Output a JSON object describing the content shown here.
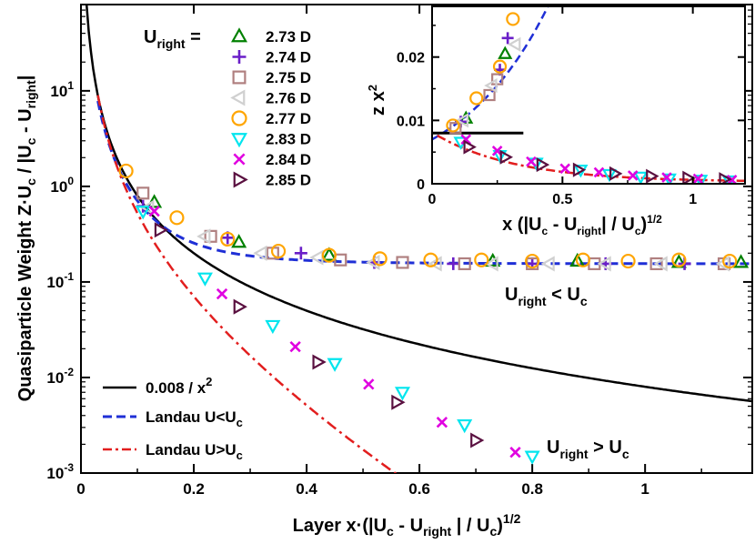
{
  "chart_data": [
    {
      "id": "main",
      "type": "scatter",
      "title": "",
      "xlabel": "Layer x·(|Uc - Uright | / Uc)^1/2",
      "ylabel": "Quasiparticle Weight Z·Uc / |Uc - Uright|",
      "xlim": [
        0,
        1.19
      ],
      "ylim": [
        0.001,
        80
      ],
      "yscale": "log",
      "xticks": [
        0,
        0.2,
        0.4,
        0.6,
        0.8,
        1
      ],
      "xtick_labels": [
        "0",
        "0.2",
        "0.4",
        "0.6",
        "0.8",
        "1"
      ],
      "yticks": [
        0.001,
        0.01,
        0.1,
        1,
        10
      ],
      "ytick_labels": [
        {
          "base": "10",
          "exp": "-3"
        },
        {
          "base": "10",
          "exp": "-2"
        },
        {
          "base": "10",
          "exp": "-1"
        },
        {
          "base": "10",
          "exp": "0"
        },
        {
          "base": "10",
          "exp": "1"
        }
      ],
      "legend_title": "Uright =",
      "series": [
        {
          "name": "2.73 D",
          "marker": "triangle-up",
          "color": "#008000",
          "points": [
            [
              0.13,
              0.68
            ],
            [
              0.28,
              0.26
            ],
            [
              0.44,
              0.19
            ],
            [
              0.73,
              0.165
            ],
            [
              0.88,
              0.165
            ],
            [
              1.06,
              0.16
            ],
            [
              1.17,
              0.16
            ]
          ]
        },
        {
          "name": "2.74 D",
          "marker": "plus",
          "color": "#6a1fc8",
          "points": [
            [
              0.11,
              0.62
            ],
            [
              0.26,
              0.29
            ],
            [
              0.39,
              0.2
            ],
            [
              0.52,
              0.16
            ],
            [
              0.66,
              0.155
            ],
            [
              0.8,
              0.155
            ],
            [
              0.93,
              0.155
            ],
            [
              1.07,
              0.155
            ]
          ]
        },
        {
          "name": "2.75 D",
          "marker": "square",
          "color": "#b08080",
          "points": [
            [
              0.11,
              0.85
            ],
            [
              0.23,
              0.3
            ],
            [
              0.34,
              0.2
            ],
            [
              0.46,
              0.17
            ],
            [
              0.57,
              0.16
            ],
            [
              0.68,
              0.155
            ],
            [
              0.8,
              0.155
            ],
            [
              0.91,
              0.155
            ],
            [
              1.02,
              0.155
            ],
            [
              1.14,
              0.155
            ]
          ]
        },
        {
          "name": "2.76 D",
          "marker": "triangle-left",
          "color": "#d0d0d0",
          "points": [
            [
              0.12,
              0.6
            ],
            [
              0.22,
              0.3
            ],
            [
              0.32,
              0.2
            ],
            [
              0.42,
              0.18
            ],
            [
              0.52,
              0.16
            ],
            [
              0.63,
              0.155
            ],
            [
              0.73,
              0.155
            ],
            [
              0.83,
              0.155
            ],
            [
              0.93,
              0.155
            ],
            [
              1.03,
              0.155
            ],
            [
              1.14,
              0.155
            ]
          ]
        },
        {
          "name": "2.77 D",
          "marker": "circle",
          "color": "#ffa500",
          "points": [
            [
              0.08,
              1.45
            ],
            [
              0.17,
              0.47
            ],
            [
              0.26,
              0.28
            ],
            [
              0.35,
              0.21
            ],
            [
              0.44,
              0.19
            ],
            [
              0.53,
              0.175
            ],
            [
              0.62,
              0.17
            ],
            [
              0.71,
              0.17
            ],
            [
              0.8,
              0.165
            ],
            [
              0.89,
              0.17
            ],
            [
              0.97,
              0.165
            ],
            [
              1.06,
              0.17
            ],
            [
              1.15,
              0.165
            ]
          ]
        },
        {
          "name": "2.83 D",
          "marker": "triangle-down",
          "color": "#00e5ee",
          "points": [
            [
              0.11,
              0.55
            ],
            [
              0.22,
              0.11
            ],
            [
              0.34,
              0.035
            ],
            [
              0.45,
              0.014
            ],
            [
              0.57,
              0.007
            ],
            [
              0.68,
              0.0032
            ],
            [
              0.8,
              0.0015
            ]
          ]
        },
        {
          "name": "2.84 D",
          "marker": "x",
          "color": "#e000e0",
          "points": [
            [
              0.13,
              0.55
            ],
            [
              0.25,
              0.075
            ],
            [
              0.38,
              0.021
            ],
            [
              0.51,
              0.0085
            ],
            [
              0.64,
              0.0034
            ],
            [
              0.77,
              0.00165
            ]
          ]
        },
        {
          "name": "2.85 D",
          "marker": "triangle-right",
          "color": "#5a1040",
          "points": [
            [
              0.14,
              0.35
            ],
            [
              0.28,
              0.055
            ],
            [
              0.42,
              0.0145
            ],
            [
              0.56,
              0.0055
            ],
            [
              0.7,
              0.0022
            ]
          ]
        }
      ],
      "lines": [
        {
          "name": "0.008 / x^2",
          "style": "solid",
          "color": "#000000"
        },
        {
          "name": "Landau U<Uc",
          "style": "dashed",
          "color": "#1f2fd6"
        },
        {
          "name": "Landau U>Uc",
          "style": "dashdot",
          "color": "#e21e1e"
        }
      ],
      "annotations": [
        {
          "text": "Uright < Uc",
          "x": 0.79,
          "y": 0.075
        },
        {
          "text": "Uright > Uc",
          "x": 0.84,
          "y": 0.0012
        }
      ]
    },
    {
      "id": "inset",
      "type": "scatter",
      "xlabel": "x (|Uc - Uright| / Uc)^1/2",
      "ylabel": "z x^2",
      "xlim": [
        0,
        1.2
      ],
      "ylim": [
        0,
        0.028
      ],
      "xticks": [
        0,
        0.5,
        1
      ],
      "xtick_labels": [
        "0",
        "0.5",
        "1"
      ],
      "yticks": [
        0,
        0.01,
        0.02
      ],
      "ytick_labels": [
        "0",
        "0.01",
        "0.02"
      ],
      "reference_line": {
        "name": "0.008",
        "x_range": [
          0,
          0.35
        ],
        "y": 0.008
      },
      "series": [
        {
          "name": "2.73 D",
          "points": [
            [
              0.13,
              0.0103
            ],
            [
              0.28,
              0.0205
            ]
          ]
        },
        {
          "name": "2.74 D",
          "points": [
            [
              0.11,
              0.0098
            ],
            [
              0.26,
              0.018
            ],
            [
              0.29,
              0.023
            ]
          ]
        },
        {
          "name": "2.75 D",
          "points": [
            [
              0.09,
              0.0088
            ],
            [
              0.22,
              0.014
            ],
            [
              0.25,
              0.0165
            ]
          ]
        },
        {
          "name": "2.76 D",
          "points": [
            [
              0.12,
              0.01
            ],
            [
              0.23,
              0.0155
            ],
            [
              0.32,
              0.022
            ]
          ]
        },
        {
          "name": "2.77 D",
          "points": [
            [
              0.08,
              0.0092
            ],
            [
              0.17,
              0.0135
            ],
            [
              0.26,
              0.0185
            ],
            [
              0.31,
              0.026
            ]
          ]
        },
        {
          "name": "2.83 D",
          "points": [
            [
              0.11,
              0.0066
            ],
            [
              0.26,
              0.0045
            ],
            [
              0.4,
              0.0033
            ],
            [
              0.57,
              0.0022
            ],
            [
              0.68,
              0.0015
            ],
            [
              0.8,
              0.0011
            ],
            [
              0.91,
              0.0008
            ],
            [
              1.03,
              0.0006
            ],
            [
              1.14,
              0.0005
            ]
          ]
        },
        {
          "name": "2.84 D",
          "points": [
            [
              0.13,
              0.007
            ],
            [
              0.25,
              0.0052
            ],
            [
              0.38,
              0.0035
            ],
            [
              0.51,
              0.0024
            ],
            [
              0.64,
              0.0018
            ],
            [
              0.77,
              0.0013
            ],
            [
              0.9,
              0.001
            ],
            [
              1.02,
              0.0008
            ],
            [
              1.15,
              0.0006
            ]
          ]
        },
        {
          "name": "2.85 D",
          "points": [
            [
              0.14,
              0.0058
            ],
            [
              0.28,
              0.0042
            ],
            [
              0.42,
              0.003
            ],
            [
              0.56,
              0.0022
            ],
            [
              0.7,
              0.0016
            ],
            [
              0.84,
              0.0012
            ],
            [
              0.98,
              0.0009
            ],
            [
              1.12,
              0.0007
            ]
          ]
        }
      ]
    }
  ]
}
